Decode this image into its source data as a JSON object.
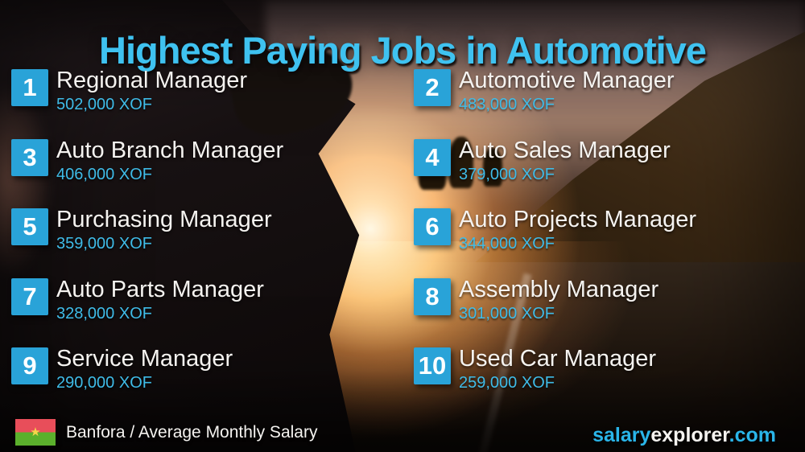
{
  "title": "Highest Paying Jobs in Automotive",
  "jobs": [
    {
      "rank": "1",
      "title": "Regional Manager",
      "salary": "502,000 XOF"
    },
    {
      "rank": "2",
      "title": "Automotive Manager",
      "salary": "483,000 XOF"
    },
    {
      "rank": "3",
      "title": "Auto Branch Manager",
      "salary": "406,000 XOF"
    },
    {
      "rank": "4",
      "title": "Auto Sales Manager",
      "salary": "379,000 XOF"
    },
    {
      "rank": "5",
      "title": "Purchasing Manager",
      "salary": "359,000 XOF"
    },
    {
      "rank": "6",
      "title": "Auto Projects Manager",
      "salary": "344,000 XOF"
    },
    {
      "rank": "7",
      "title": "Auto Parts Manager",
      "salary": "328,000 XOF"
    },
    {
      "rank": "8",
      "title": "Assembly Manager",
      "salary": "301,000 XOF"
    },
    {
      "rank": "9",
      "title": "Service Manager",
      "salary": "290,000 XOF"
    },
    {
      "rank": "10",
      "title": "Used Car Manager",
      "salary": "259,000 XOF"
    }
  ],
  "footer": {
    "label": "Banfora / Average Monthly Salary",
    "flag": "burkina-faso-flag",
    "brand": {
      "part1": "salary",
      "part2": "explorer",
      "part3": ".com"
    }
  },
  "colors": {
    "accent-cyan": "#3fc2f0",
    "badge-blue": "#29a3d8",
    "salary-cyan": "#3fbce8",
    "brand-cyan": "#2ab5e9",
    "text-white": "#f5f3f0",
    "flag-red": "#e84e5a",
    "flag-green": "#5bb02c",
    "flag-star": "#f7d64a"
  }
}
